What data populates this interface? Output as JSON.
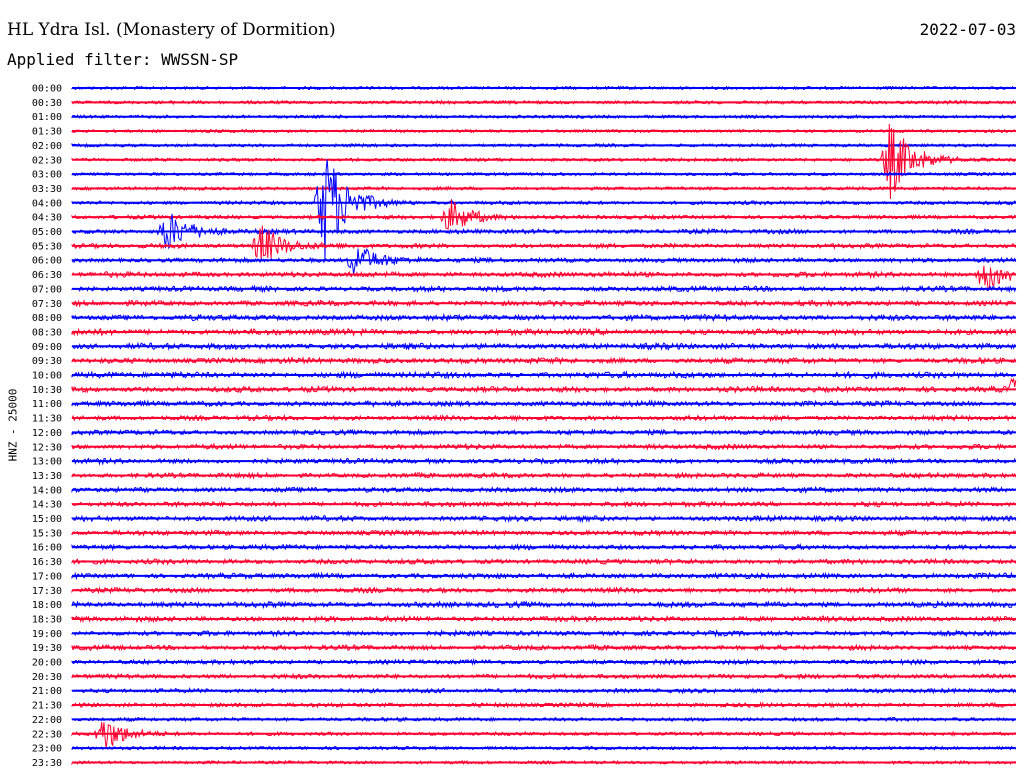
{
  "header": {
    "title": "HL Ydra Isl. (Monastery of Dormition)",
    "date": "2022-07-03",
    "filter": "Applied filter: WWSSN-SP"
  },
  "chart_data": {
    "type": "line",
    "title": "HL Ydra Isl. (Monastery of Dormition)",
    "subtitle": "Applied filter: WWSSN-SP",
    "ylabel": "HNZ - 25000",
    "xlabel": "",
    "grid": false,
    "series_colors": [
      "#0000ff",
      "#ff0030"
    ],
    "rows": [
      "00:00",
      "00:30",
      "01:00",
      "01:30",
      "02:00",
      "02:30",
      "03:00",
      "03:30",
      "04:00",
      "04:30",
      "05:00",
      "05:30",
      "06:00",
      "06:30",
      "07:00",
      "07:30",
      "08:00",
      "08:30",
      "09:00",
      "09:30",
      "10:00",
      "10:30",
      "11:00",
      "11:30",
      "12:00",
      "12:30",
      "13:00",
      "13:30",
      "14:00",
      "14:30",
      "15:00",
      "15:30",
      "16:00",
      "16:30",
      "17:00",
      "17:30",
      "18:00",
      "18:30",
      "19:00",
      "19:30",
      "20:00",
      "20:30",
      "21:00",
      "21:30",
      "22:00",
      "22:30",
      "23:00",
      "23:30"
    ],
    "noise_level": [
      0.2,
      0.25,
      0.2,
      0.15,
      0.2,
      0.25,
      0.2,
      0.25,
      0.35,
      0.4,
      0.6,
      0.6,
      0.6,
      0.8,
      0.8,
      0.8,
      0.9,
      1.0,
      1.0,
      0.9,
      1.0,
      0.9,
      0.8,
      0.7,
      0.7,
      0.7,
      0.7,
      0.7,
      0.7,
      0.7,
      0.8,
      0.7,
      0.7,
      0.7,
      0.8,
      0.7,
      0.9,
      0.8,
      0.7,
      0.7,
      0.6,
      0.6,
      0.5,
      0.5,
      0.35,
      0.3,
      0.25,
      0.2
    ],
    "events": [
      {
        "row": "04:00",
        "minute": 8,
        "amplitude": 3.5
      },
      {
        "row": "02:30",
        "minute": 26,
        "amplitude": 2.2
      },
      {
        "row": "05:00",
        "minute": 3,
        "amplitude": 1.2
      },
      {
        "row": "05:30",
        "minute": 6,
        "amplitude": 1.2
      },
      {
        "row": "06:00",
        "minute": 9,
        "amplitude": 1.0
      },
      {
        "row": "04:30",
        "minute": 12,
        "amplitude": 1.0
      },
      {
        "row": "06:30",
        "minute": 29,
        "amplitude": 1.0
      },
      {
        "row": "10:30",
        "minute": 30,
        "amplitude": 1.0
      },
      {
        "row": "22:30",
        "minute": 1,
        "amplitude": 1.0
      }
    ]
  }
}
